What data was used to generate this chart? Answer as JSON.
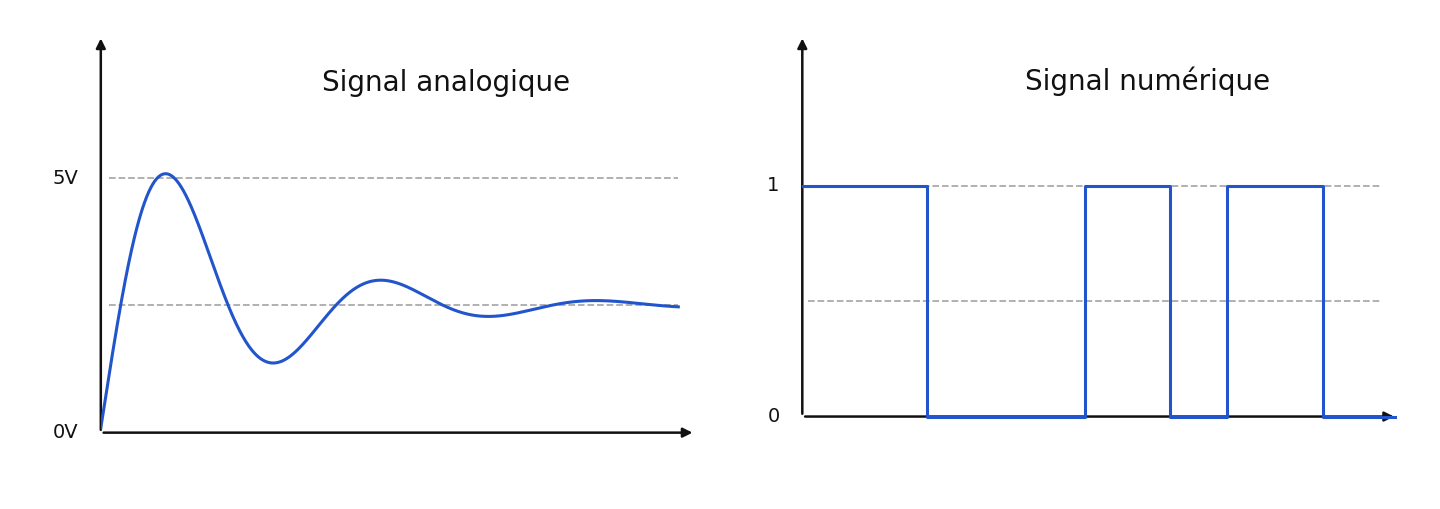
{
  "title_analog": "Signal analogique",
  "title_digital": "Signal numérique",
  "analog_color": "#2255cc",
  "digital_color": "#2255cc",
  "axis_color": "#111111",
  "grid_color": "#aaaaaa",
  "background_color": "#ffffff",
  "title_fontsize": 20,
  "label_fontsize": 14,
  "analog_ytick_labels": [
    "0V",
    "5V"
  ],
  "analog_hline_high": 5.0,
  "analog_hline_mid": 2.5,
  "analog_ylim": [
    -0.5,
    7.8
  ],
  "analog_xlim": [
    0,
    10.5
  ],
  "digital_ytick_labels": [
    "0",
    "1"
  ],
  "digital_hline_high": 1.0,
  "digital_hline_mid": 0.5,
  "digital_ylim": [
    -0.18,
    1.65
  ],
  "digital_xlim": [
    0,
    10.5
  ],
  "digital_x": [
    0,
    2.2,
    2.2,
    5.0,
    5.0,
    6.5,
    6.5,
    7.5,
    7.5,
    9.2,
    9.2,
    10.5
  ],
  "digital_y": [
    1.0,
    1.0,
    0.0,
    0.0,
    1.0,
    1.0,
    0.0,
    0.0,
    1.0,
    1.0,
    0.0,
    0.0
  ]
}
